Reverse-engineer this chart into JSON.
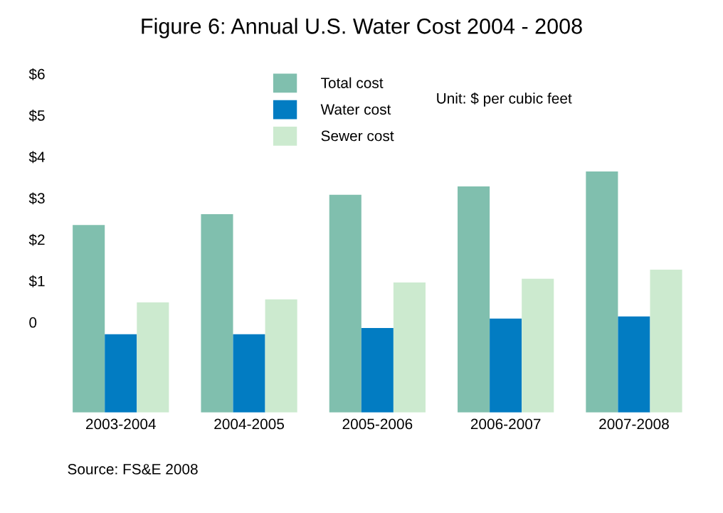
{
  "chart_data": {
    "type": "bar",
    "title": "Figure 6: Annual U.S. Water Cost 2004 - 2008",
    "categories": [
      "2003-2004",
      "2004-2005",
      "2005-2006",
      "2006-2007",
      "2007-2008"
    ],
    "series": [
      {
        "name": "Total cost",
        "color": "#80bfae",
        "base": [
          -2.18,
          -2.18,
          -2.18,
          -2.18,
          -2.18
        ],
        "values": [
          4.53,
          4.79,
          5.26,
          5.46,
          5.82
        ]
      },
      {
        "name": "Water cost",
        "color": "#027cc2",
        "base": [
          -2.18,
          -2.18,
          -2.18,
          -2.18,
          -2.18
        ],
        "values": [
          1.89,
          1.89,
          2.04,
          2.27,
          2.32
        ]
      },
      {
        "name": "Sewer cost",
        "color": "#cceacf",
        "base": [
          -2.18,
          -2.18,
          -2.18,
          -2.18,
          -2.18
        ],
        "values": [
          2.66,
          2.73,
          3.14,
          3.23,
          3.45
        ]
      }
    ],
    "ylim": [
      -2.18,
      6
    ],
    "yticks": [
      {
        "value": 0,
        "label": "0"
      },
      {
        "value": 1,
        "label": "$1"
      },
      {
        "value": 2,
        "label": "$2"
      },
      {
        "value": 3,
        "label": "$3"
      },
      {
        "value": 4,
        "label": "$4"
      },
      {
        "value": 5,
        "label": "$5"
      },
      {
        "value": 6,
        "label": "$6"
      }
    ],
    "annotations": [
      "Unit: $ per cubic feet",
      "Source: FS&E 2008"
    ],
    "legend": "top",
    "grid": false
  }
}
